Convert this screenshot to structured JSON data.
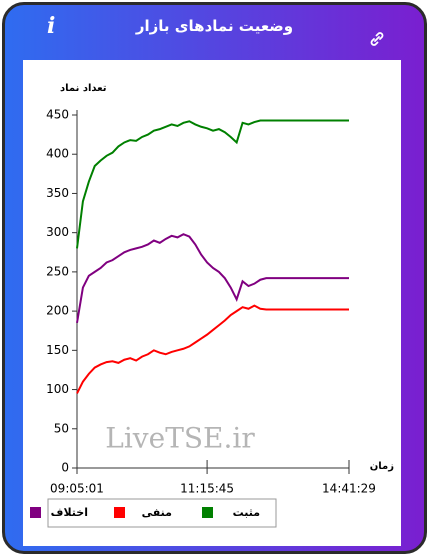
{
  "header": {
    "title": "وضعیت نمادهای بازار"
  },
  "chart_data": {
    "type": "line",
    "ylabel": "تعداد نماد",
    "xlabel": "زمان",
    "watermark": "LiveTSE.ir",
    "categories": [
      "09:05:01",
      null,
      null,
      null,
      null,
      null,
      null,
      null,
      null,
      null,
      null,
      null,
      null,
      null,
      null,
      null,
      null,
      null,
      null,
      null,
      null,
      null,
      "11:15:45",
      null,
      null,
      null,
      null,
      null,
      null,
      null,
      null,
      null,
      null,
      null,
      null,
      null,
      null,
      null,
      null,
      null,
      null,
      null,
      null,
      null,
      null,
      null,
      "14:41:29"
    ],
    "ylim": [
      0,
      450
    ],
    "yticks": [
      0,
      50,
      100,
      150,
      200,
      250,
      300,
      350,
      400,
      450
    ],
    "series": [
      {
        "name": "مثبت",
        "color": "#008000",
        "values": [
          280,
          340,
          365,
          385,
          392,
          398,
          402,
          410,
          415,
          418,
          417,
          422,
          425,
          430,
          432,
          435,
          438,
          436,
          440,
          442,
          438,
          435,
          433,
          430,
          432,
          428,
          422,
          415,
          440,
          438,
          441,
          443,
          443,
          443,
          443,
          443,
          443,
          443,
          443,
          443,
          443,
          443,
          443,
          443,
          443,
          443,
          443
        ]
      },
      {
        "name": "منفی",
        "color": "#ff0000",
        "values": [
          95,
          110,
          120,
          128,
          132,
          135,
          136,
          134,
          138,
          140,
          137,
          142,
          145,
          150,
          147,
          145,
          148,
          150,
          152,
          155,
          160,
          165,
          170,
          176,
          182,
          188,
          195,
          200,
          205,
          203,
          207,
          203,
          202,
          202,
          202,
          202,
          202,
          202,
          202,
          202,
          202,
          202,
          202,
          202,
          202,
          202,
          202
        ]
      },
      {
        "name": "اختلاف",
        "color": "#800080",
        "values": [
          185,
          230,
          245,
          250,
          255,
          262,
          265,
          270,
          275,
          278,
          280,
          282,
          285,
          290,
          287,
          292,
          296,
          294,
          298,
          295,
          285,
          272,
          262,
          255,
          250,
          242,
          230,
          215,
          238,
          232,
          235,
          240,
          242,
          242,
          242,
          242,
          242,
          242,
          242,
          242,
          242,
          242,
          242,
          242,
          242,
          242,
          242
        ]
      }
    ]
  }
}
